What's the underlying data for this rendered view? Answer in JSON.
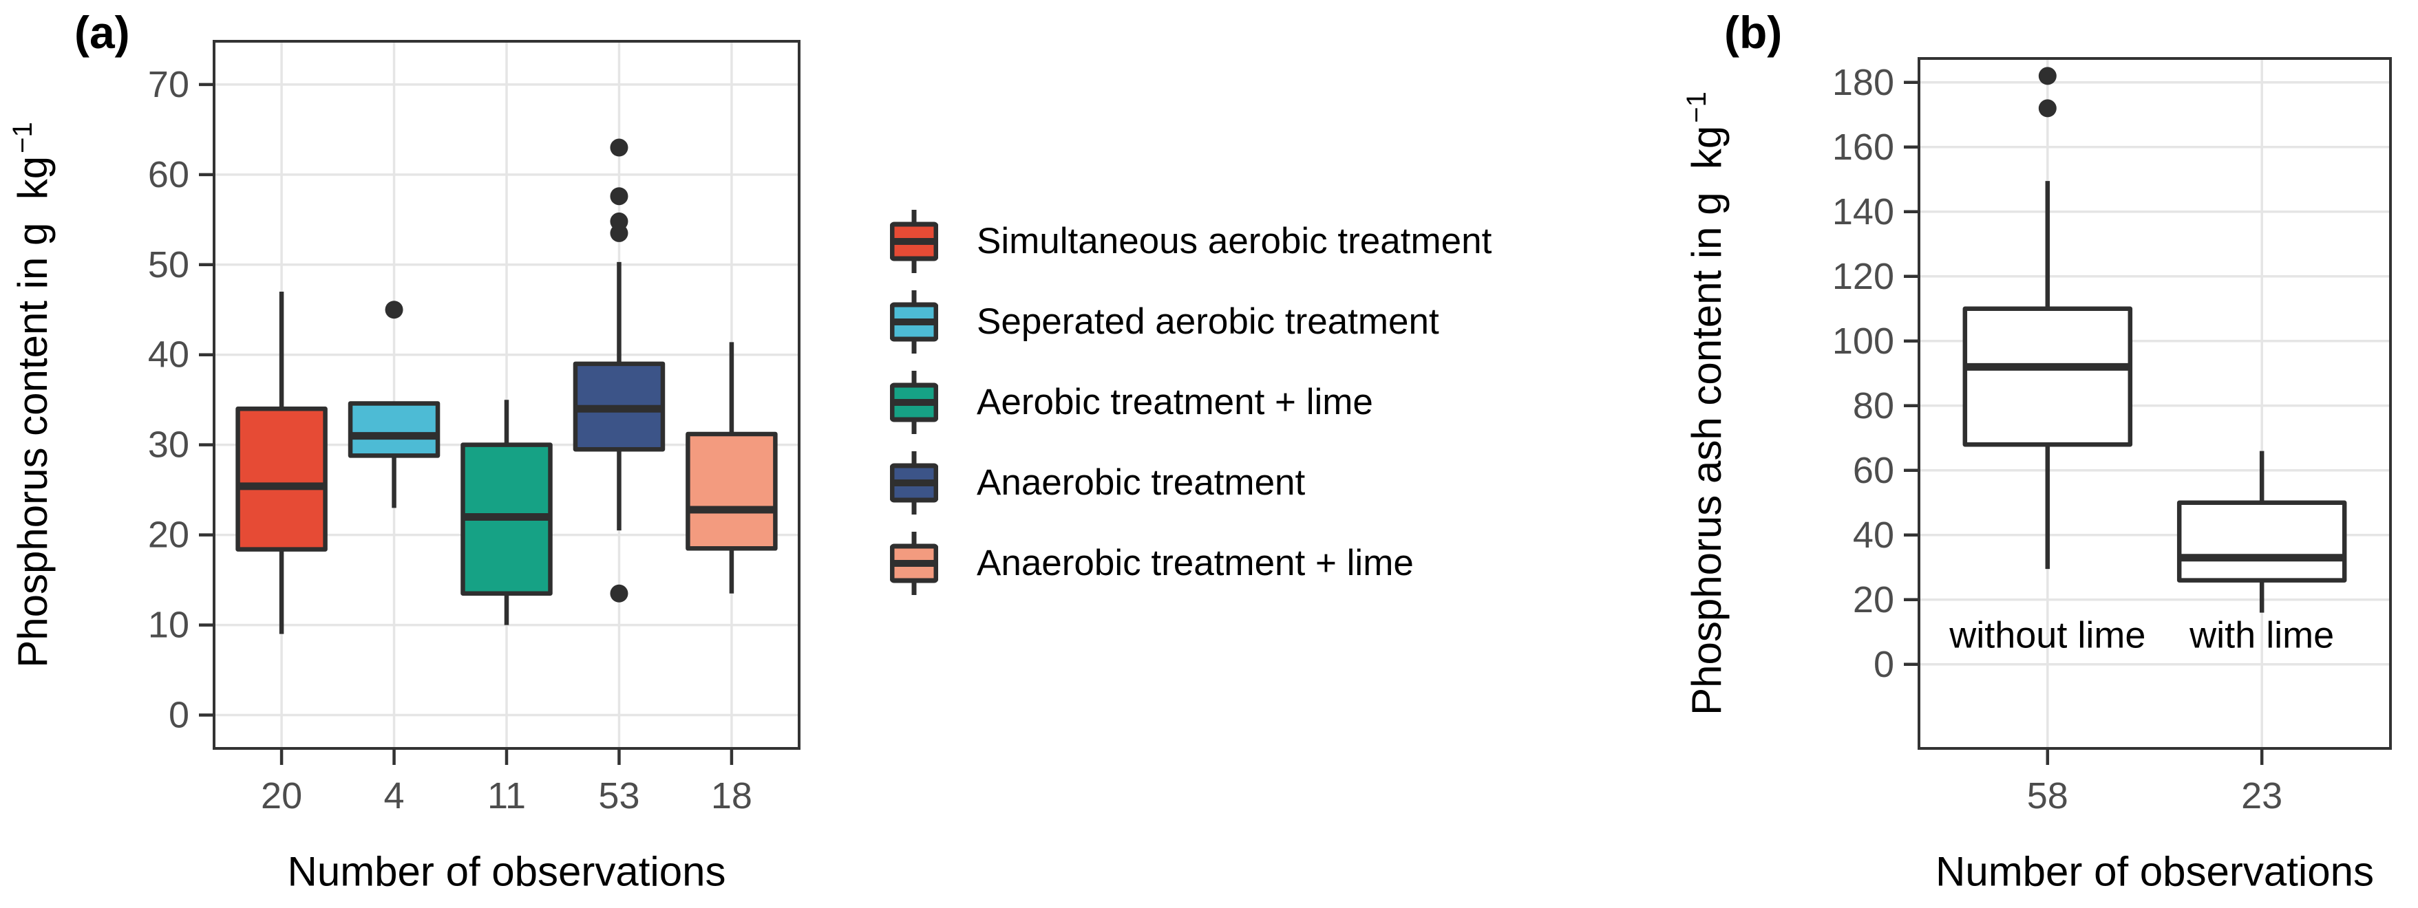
{
  "figure": {
    "background": "#FFFFFF",
    "style": {
      "box_outline_color": "#2F2F2F",
      "gridline_color": "#E5E5E5",
      "panel_border_color": "#333333",
      "tick_mark_color": "#333333",
      "tick_label_color": "#4D4D4D",
      "axis_title_color": "#000000",
      "outlier_color": "#2F2F2F"
    }
  },
  "legend": {
    "position": "center-between-panels",
    "items": [
      {
        "label": "Simultaneous aerobic treatment",
        "color": "#E64B35"
      },
      {
        "label": "Seperated aerobic treatment",
        "color": "#4DBBD5"
      },
      {
        "label": "Aerobic treatment + lime",
        "color": "#16A285"
      },
      {
        "label": "Anaerobic treatment",
        "color": "#3C5488"
      },
      {
        "label": "Anaerobic treatment + lime",
        "color": "#F39B7F"
      }
    ]
  },
  "chart_data": [
    {
      "type": "boxplot",
      "panel": "a",
      "title_tag": "(a)",
      "ylabel": "Phosphorus content in g  kg",
      "ylabel_superscript": "−1",
      "xlabel": "Number of observations",
      "y_ticks": [
        0,
        10,
        20,
        30,
        40,
        50,
        60,
        70
      ],
      "ylim": [
        -3.7,
        74.8
      ],
      "grid": "major-only",
      "categories": [
        "20",
        "4",
        "11",
        "53",
        "18"
      ],
      "boxes": [
        {
          "group": "Simultaneous aerobic treatment",
          "n_label": "20",
          "color": "#E64B35",
          "whisker_low": 9,
          "q1": 18.4,
          "median": 25.4,
          "q3": 34,
          "whisker_high": 47,
          "outliers": []
        },
        {
          "group": "Seperated aerobic treatment",
          "n_label": "4",
          "color": "#4DBBD5",
          "whisker_low": 23,
          "q1": 28.8,
          "median": 31,
          "q3": 34.6,
          "whisker_high": 34.6,
          "outliers": [
            45
          ]
        },
        {
          "group": "Aerobic treatment + lime",
          "n_label": "11",
          "color": "#16A285",
          "whisker_low": 10,
          "q1": 13.5,
          "median": 22,
          "q3": 30,
          "whisker_high": 35,
          "outliers": []
        },
        {
          "group": "Anaerobic treatment",
          "n_label": "53",
          "color": "#3C5488",
          "whisker_low": 20.5,
          "q1": 29.5,
          "median": 34,
          "q3": 39,
          "whisker_high": 50.3,
          "outliers": [
            13.5,
            53.5,
            54.8,
            57.6,
            63
          ]
        },
        {
          "group": "Anaerobic treatment + lime",
          "n_label": "18",
          "color": "#F39B7F",
          "whisker_low": 13.5,
          "q1": 18.5,
          "median": 22.8,
          "q3": 31.2,
          "whisker_high": 41.4,
          "outliers": []
        }
      ],
      "annotations": []
    },
    {
      "type": "boxplot",
      "panel": "b",
      "title_tag": "(b)",
      "ylabel": "Phosphorus ash content in g  kg",
      "ylabel_superscript": "−1",
      "xlabel": "Number of observations",
      "y_ticks": [
        0,
        20,
        40,
        60,
        80,
        100,
        120,
        140,
        160,
        180
      ],
      "ylim": [
        -26,
        187.4
      ],
      "grid": "major-only",
      "categories": [
        "58",
        "23"
      ],
      "boxes": [
        {
          "group": "without lime",
          "n_label": "58",
          "color": "#FFFFFF",
          "whisker_low": 29.5,
          "q1": 68,
          "median": 92,
          "q3": 110,
          "whisker_high": 149.5,
          "outliers": [
            172,
            182
          ]
        },
        {
          "group": "with lime",
          "n_label": "23",
          "color": "#FFFFFF",
          "whisker_low": 16,
          "q1": 26,
          "median": 33,
          "q3": 50,
          "whisker_high": 66,
          "outliers": []
        }
      ],
      "annotations": [
        {
          "text": "without lime",
          "category_index": 0,
          "y": 9
        },
        {
          "text": "with lime",
          "category_index": 1,
          "y": 9
        }
      ]
    }
  ]
}
